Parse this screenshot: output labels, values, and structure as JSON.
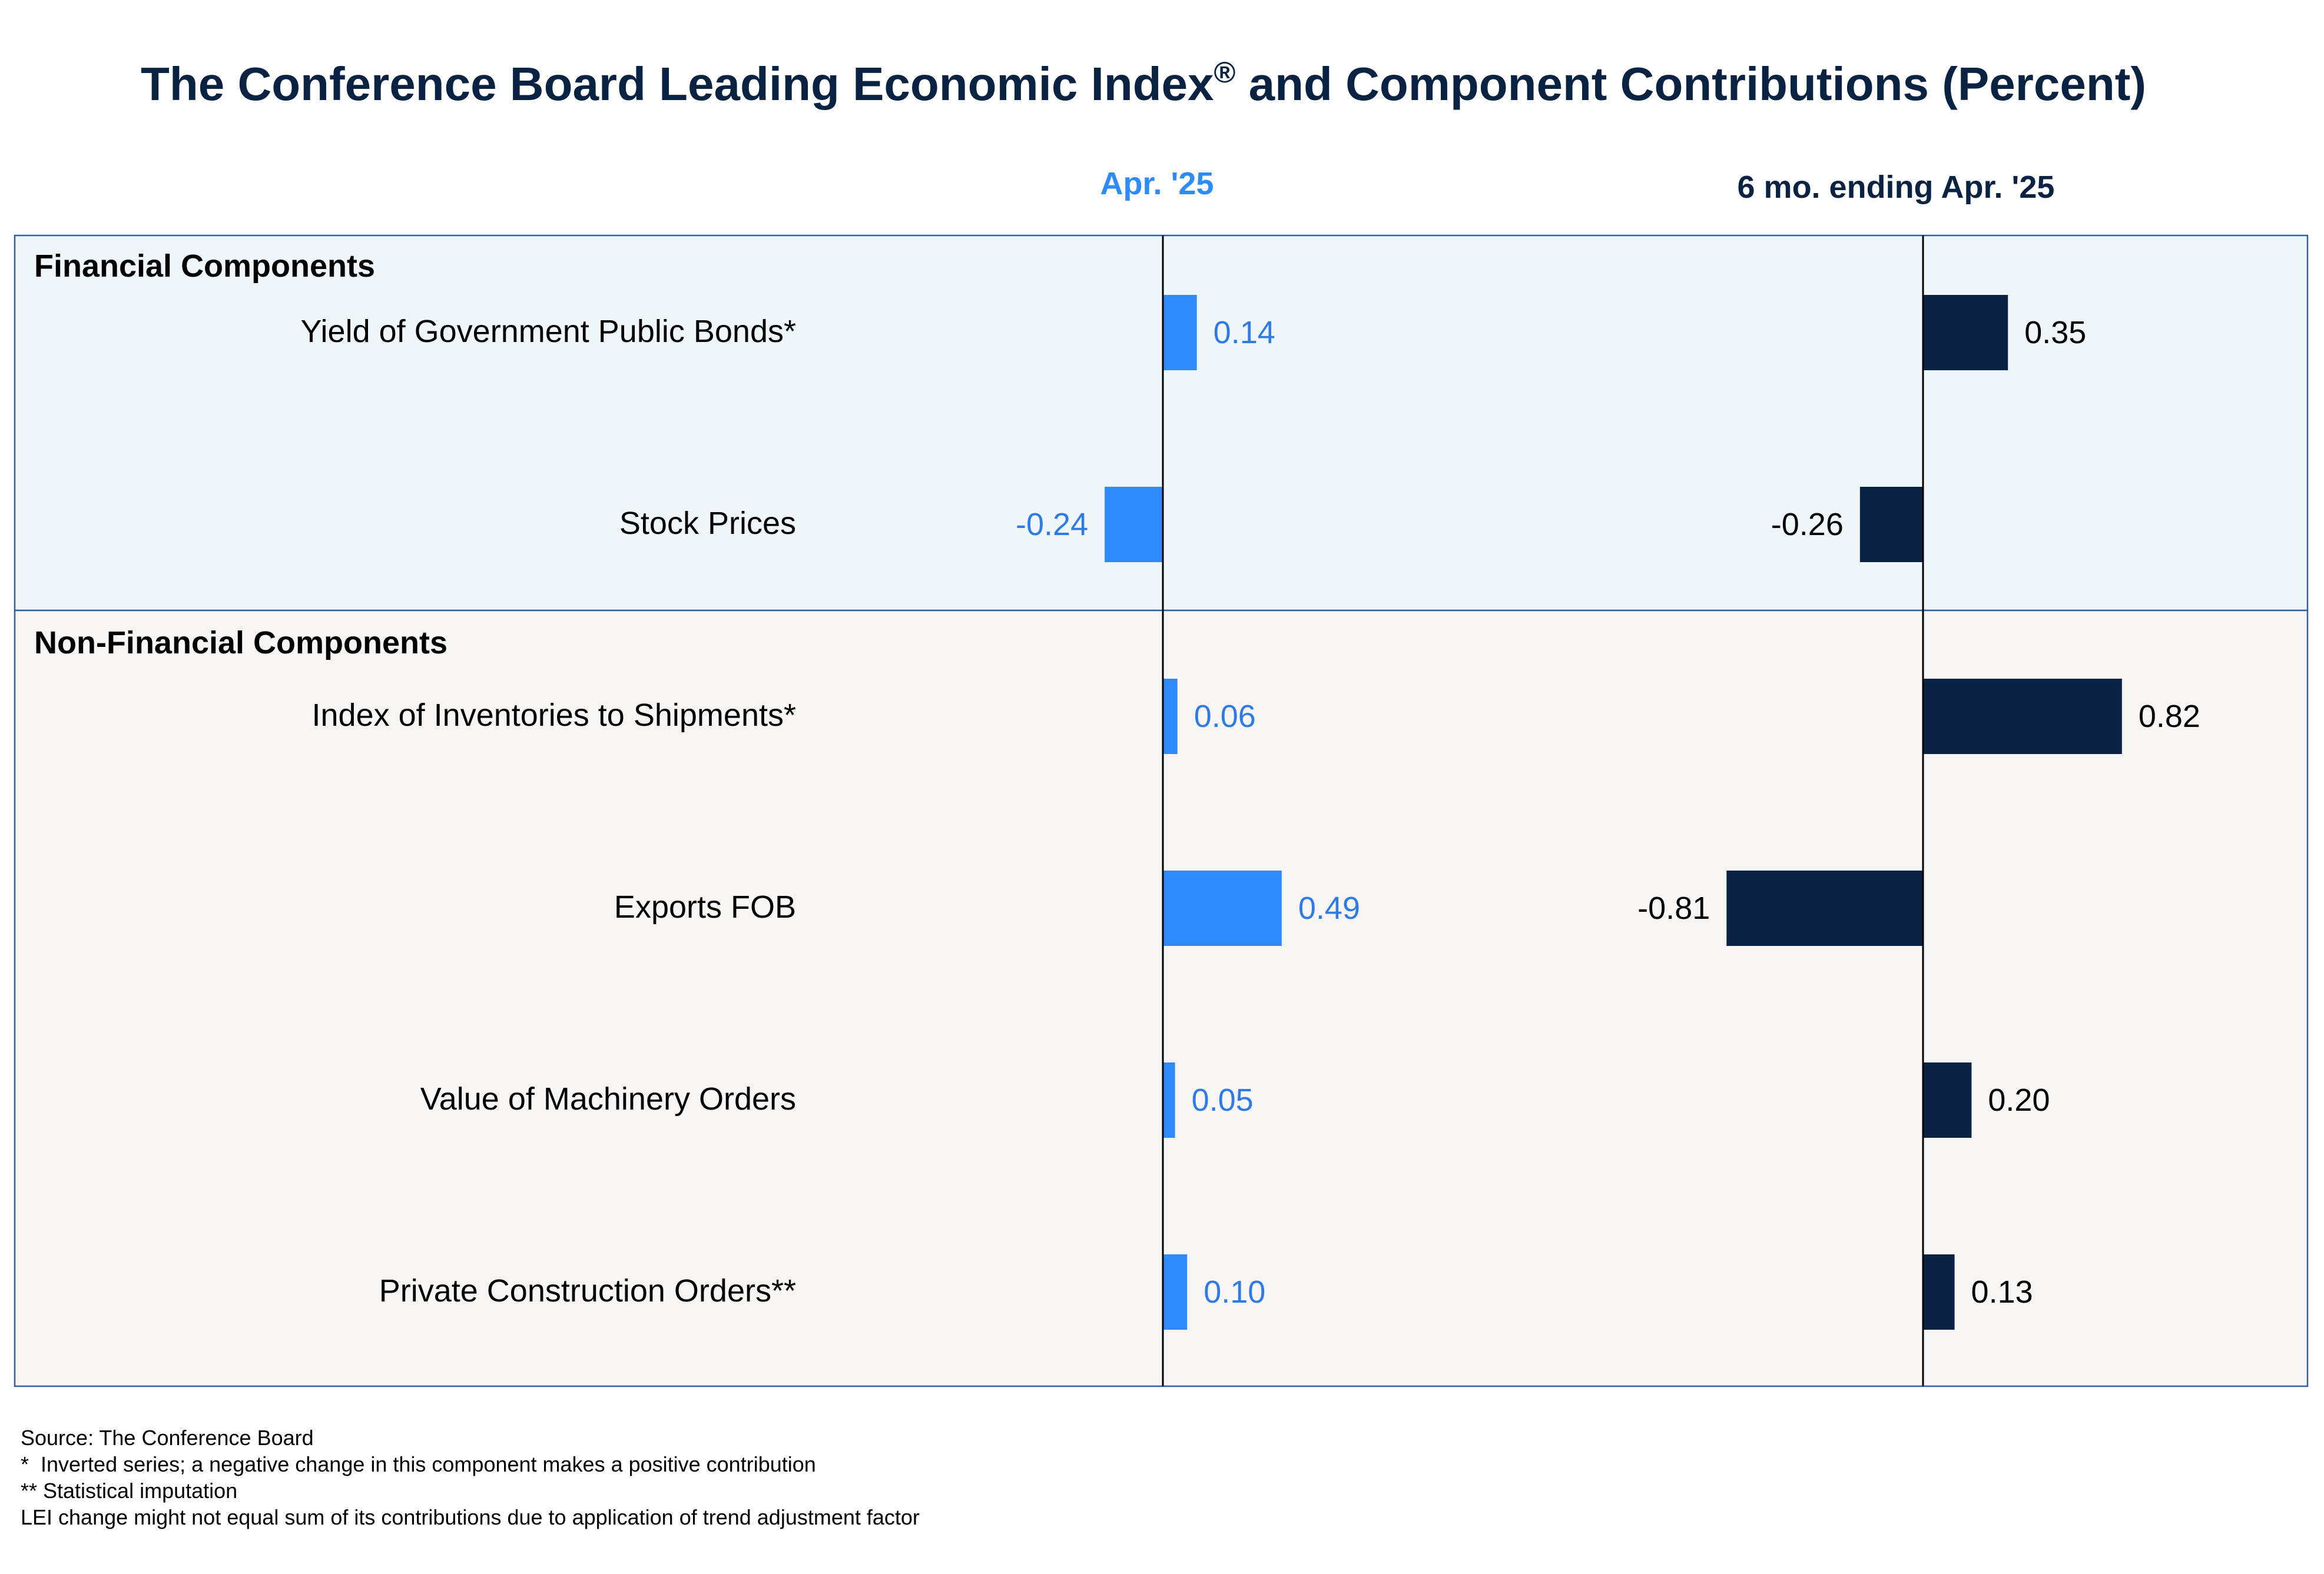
{
  "colors": {
    "apr_bar": "#2e8bff",
    "apr_text": "#2e7ae6",
    "six_bar": "#0b2342",
    "six_text": "#000000",
    "title": "#0b2342",
    "financial_bg": "#eef6f9",
    "nonfinancial_bg": "#f6f5f3",
    "panel_border": "#2f5f9e"
  },
  "chart_data": {
    "type": "bar",
    "orientation": "horizontal",
    "title": "The Conference Board Leading Economic Index® and Component Contributions (Percent)",
    "title_main": "The Conference Board Leading Economic Index",
    "title_sup": "®",
    "title_rest": " and Component Contributions (Percent)",
    "columns": [
      {
        "name": "Apr. '25",
        "color": "#2e8bff",
        "label_color": "#2e7ae6"
      },
      {
        "name": "6 mo. ending Apr. '25",
        "color": "#0b2342",
        "label_color": "#000000"
      }
    ],
    "groups": [
      {
        "name": "Financial Components",
        "items": [
          {
            "label": "Yield of Government Public Bonds*",
            "values": [
              0.14,
              0.35
            ],
            "value_labels": [
              "0.14",
              "0.35"
            ]
          },
          {
            "label": "Stock Prices",
            "values": [
              -0.24,
              -0.26
            ],
            "value_labels": [
              "-0.24",
              "-0.26"
            ]
          }
        ]
      },
      {
        "name": "Non-Financial Components",
        "items": [
          {
            "label": "Index of Inventories to Shipments*",
            "values": [
              0.06,
              0.82
            ],
            "value_labels": [
              "0.06",
              "0.82"
            ]
          },
          {
            "label": "Exports FOB",
            "values": [
              0.49,
              -0.81
            ],
            "value_labels": [
              "0.49",
              "-0.81"
            ]
          },
          {
            "label": "Value of Machinery Orders",
            "values": [
              0.05,
              0.2
            ],
            "value_labels": [
              "0.05",
              "0.20"
            ]
          },
          {
            "label": "Private Construction Orders**",
            "values": [
              0.1,
              0.13
            ],
            "value_labels": [
              "0.10",
              "0.13"
            ]
          }
        ]
      }
    ],
    "footnotes": [
      "Source: The Conference Board",
      "*  Inverted series; a negative change in this component makes a positive contribution",
      "** Statistical imputation",
      "LEI change might not equal sum of its contributions due to application of trend adjustment factor"
    ]
  }
}
